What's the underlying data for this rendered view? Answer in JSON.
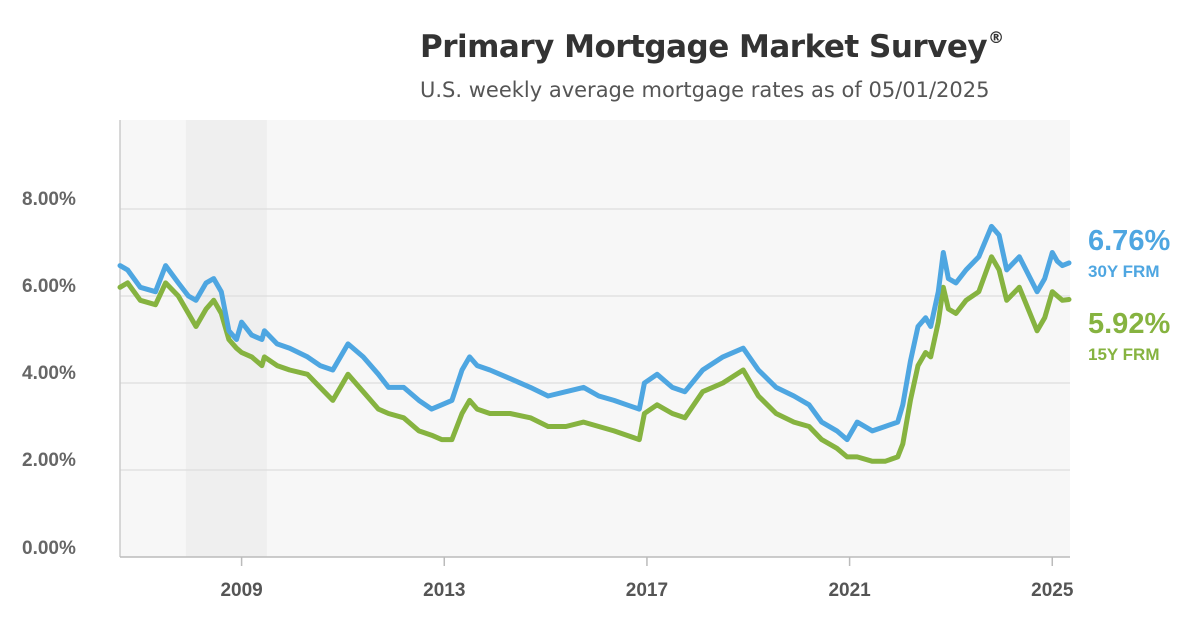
{
  "chart_data": {
    "type": "line",
    "title": "Primary Mortgage Market Survey",
    "title_mark": "®",
    "subtitle": "U.S. weekly average mortgage rates as of 05/01/2025",
    "xlabel": "",
    "ylabel": "",
    "xlim": [
      2006.6,
      2025.35
    ],
    "ylim": [
      0,
      10
    ],
    "y_ticks": [
      {
        "value": 0,
        "label": "0.00%"
      },
      {
        "value": 2,
        "label": "2.00%"
      },
      {
        "value": 4,
        "label": "4.00%"
      },
      {
        "value": 6,
        "label": "6.00%"
      },
      {
        "value": 8,
        "label": "8.00%"
      }
    ],
    "x_ticks": [
      {
        "value": 2009,
        "label": "2009"
      },
      {
        "value": 2013,
        "label": "2013"
      },
      {
        "value": 2017,
        "label": "2017"
      },
      {
        "value": 2021,
        "label": "2021"
      },
      {
        "value": 2025,
        "label": "2025"
      }
    ],
    "grid": "horizontal",
    "recession_shading": [
      2007.9,
      2009.5
    ],
    "series": [
      {
        "name": "30Y FRM",
        "end_value_label": "6.76%",
        "color": "#4ea6e1",
        "x": [
          2006.6,
          2006.75,
          2007.0,
          2007.3,
          2007.5,
          2007.75,
          2007.95,
          2008.1,
          2008.3,
          2008.45,
          2008.6,
          2008.75,
          2008.9,
          2009.0,
          2009.2,
          2009.4,
          2009.45,
          2009.7,
          2009.95,
          2010.3,
          2010.55,
          2010.8,
          2011.1,
          2011.4,
          2011.7,
          2011.9,
          2012.2,
          2012.5,
          2012.75,
          2012.95,
          2013.15,
          2013.35,
          2013.5,
          2013.65,
          2013.9,
          2014.3,
          2014.7,
          2015.05,
          2015.4,
          2015.75,
          2016.05,
          2016.35,
          2016.6,
          2016.85,
          2016.95,
          2017.2,
          2017.5,
          2017.75,
          2018.1,
          2018.5,
          2018.9,
          2019.2,
          2019.55,
          2019.9,
          2020.2,
          2020.45,
          2020.75,
          2020.95,
          2021.15,
          2021.45,
          2021.7,
          2021.95,
          2022.05,
          2022.2,
          2022.35,
          2022.5,
          2022.6,
          2022.75,
          2022.85,
          2022.95,
          2023.1,
          2023.3,
          2023.55,
          2023.8,
          2023.95,
          2024.1,
          2024.35,
          2024.7,
          2024.85,
          2025.0,
          2025.1,
          2025.2,
          2025.33
        ],
        "values": [
          6.7,
          6.6,
          6.2,
          6.1,
          6.7,
          6.3,
          6.0,
          5.9,
          6.3,
          6.4,
          6.1,
          5.2,
          5.0,
          5.4,
          5.1,
          5.0,
          5.2,
          4.9,
          4.8,
          4.6,
          4.4,
          4.3,
          4.9,
          4.6,
          4.2,
          3.9,
          3.9,
          3.6,
          3.4,
          3.5,
          3.6,
          4.3,
          4.6,
          4.4,
          4.3,
          4.1,
          3.9,
          3.7,
          3.8,
          3.9,
          3.7,
          3.6,
          3.5,
          3.4,
          4.0,
          4.2,
          3.9,
          3.8,
          4.3,
          4.6,
          4.8,
          4.3,
          3.9,
          3.7,
          3.5,
          3.1,
          2.9,
          2.7,
          3.1,
          2.9,
          3.0,
          3.1,
          3.5,
          4.5,
          5.3,
          5.5,
          5.3,
          6.1,
          7.0,
          6.4,
          6.3,
          6.6,
          6.9,
          7.6,
          7.4,
          6.6,
          6.9,
          6.1,
          6.4,
          7.0,
          6.8,
          6.7,
          6.76
        ]
      },
      {
        "name": "15Y FRM",
        "end_value_label": "5.92%",
        "color": "#86b340",
        "x": [
          2006.6,
          2006.75,
          2007.0,
          2007.3,
          2007.5,
          2007.75,
          2007.95,
          2008.1,
          2008.3,
          2008.45,
          2008.6,
          2008.75,
          2008.9,
          2009.0,
          2009.2,
          2009.4,
          2009.45,
          2009.7,
          2009.95,
          2010.3,
          2010.55,
          2010.8,
          2011.1,
          2011.4,
          2011.7,
          2011.9,
          2012.2,
          2012.5,
          2012.75,
          2012.95,
          2013.15,
          2013.35,
          2013.5,
          2013.65,
          2013.9,
          2014.3,
          2014.7,
          2015.05,
          2015.4,
          2015.75,
          2016.05,
          2016.35,
          2016.6,
          2016.85,
          2016.95,
          2017.2,
          2017.5,
          2017.75,
          2018.1,
          2018.5,
          2018.9,
          2019.2,
          2019.55,
          2019.9,
          2020.2,
          2020.45,
          2020.75,
          2020.95,
          2021.15,
          2021.45,
          2021.7,
          2021.95,
          2022.05,
          2022.2,
          2022.35,
          2022.5,
          2022.6,
          2022.75,
          2022.85,
          2022.95,
          2023.1,
          2023.3,
          2023.55,
          2023.8,
          2023.95,
          2024.1,
          2024.35,
          2024.7,
          2024.85,
          2025.0,
          2025.1,
          2025.2,
          2025.33
        ],
        "values": [
          6.2,
          6.3,
          5.9,
          5.8,
          6.3,
          6.0,
          5.6,
          5.3,
          5.7,
          5.9,
          5.6,
          5.0,
          4.8,
          4.7,
          4.6,
          4.4,
          4.6,
          4.4,
          4.3,
          4.2,
          3.9,
          3.6,
          4.2,
          3.8,
          3.4,
          3.3,
          3.2,
          2.9,
          2.8,
          2.7,
          2.7,
          3.3,
          3.6,
          3.4,
          3.3,
          3.3,
          3.2,
          3.0,
          3.0,
          3.1,
          3.0,
          2.9,
          2.8,
          2.7,
          3.3,
          3.5,
          3.3,
          3.2,
          3.8,
          4.0,
          4.3,
          3.7,
          3.3,
          3.1,
          3.0,
          2.7,
          2.5,
          2.3,
          2.3,
          2.2,
          2.2,
          2.3,
          2.6,
          3.6,
          4.4,
          4.7,
          4.6,
          5.4,
          6.2,
          5.7,
          5.6,
          5.9,
          6.1,
          6.9,
          6.6,
          5.9,
          6.2,
          5.2,
          5.5,
          6.1,
          6.0,
          5.9,
          5.92
        ]
      }
    ]
  }
}
